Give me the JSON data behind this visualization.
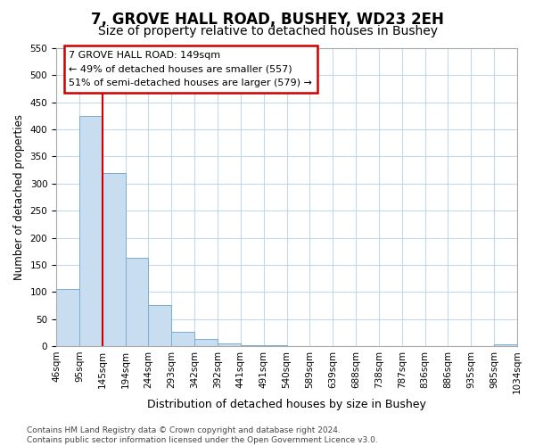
{
  "title": "7, GROVE HALL ROAD, BUSHEY, WD23 2EH",
  "subtitle": "Size of property relative to detached houses in Bushey",
  "xlabel": "Distribution of detached houses by size in Bushey",
  "ylabel": "Number of detached properties",
  "bar_values": [
    105,
    425,
    320,
    163,
    75,
    27,
    13,
    5,
    2,
    1,
    0,
    0,
    0,
    0,
    0,
    0,
    0,
    0,
    0,
    3
  ],
  "bar_labels": [
    "46sqm",
    "95sqm",
    "145sqm",
    "194sqm",
    "244sqm",
    "293sqm",
    "342sqm",
    "392sqm",
    "441sqm",
    "491sqm",
    "540sqm",
    "589sqm",
    "639sqm",
    "688sqm",
    "738sqm",
    "787sqm",
    "836sqm",
    "886sqm",
    "935sqm",
    "985sqm",
    "1034sqm"
  ],
  "bar_color": "#c8ddef",
  "bar_edge_color": "#7aaecf",
  "vline_x": 2,
  "vline_color": "#cc0000",
  "annotation_line1": "7 GROVE HALL ROAD: 149sqm",
  "annotation_line2": "← 49% of detached houses are smaller (557)",
  "annotation_line3": "51% of semi-detached houses are larger (579) →",
  "ylim": [
    0,
    550
  ],
  "yticks": [
    0,
    50,
    100,
    150,
    200,
    250,
    300,
    350,
    400,
    450,
    500,
    550
  ],
  "footnote": "Contains HM Land Registry data © Crown copyright and database right 2024.\nContains public sector information licensed under the Open Government Licence v3.0.",
  "background_color": "#ffffff",
  "grid_color": "#c5d8ea",
  "title_fontsize": 12,
  "subtitle_fontsize": 10,
  "xlabel_fontsize": 9,
  "ylabel_fontsize": 8.5,
  "tick_fontsize": 7.5,
  "annotation_fontsize": 8,
  "footnote_fontsize": 6.5
}
